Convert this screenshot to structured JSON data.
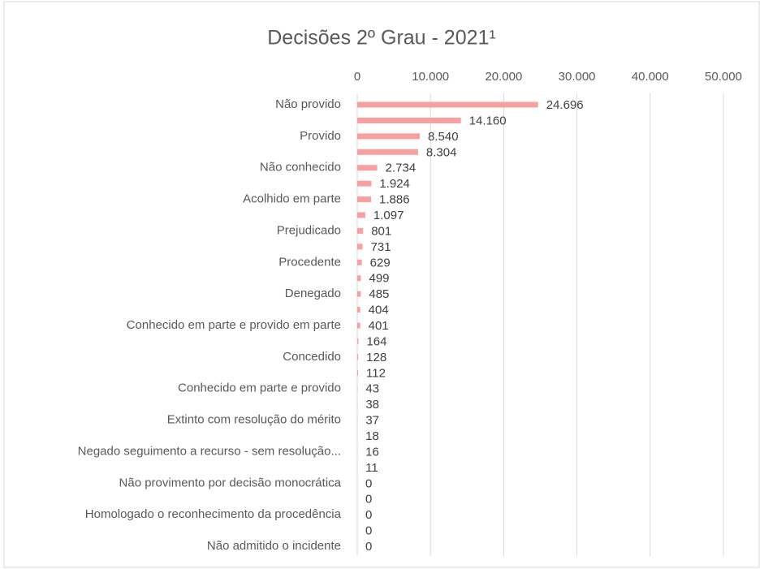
{
  "chart_data": {
    "type": "bar",
    "orientation": "horizontal",
    "title": "Decisões 2º Grau - 2021¹",
    "categories": [
      "Não provido",
      null,
      "Provido",
      null,
      "Não conhecido",
      null,
      "Acolhido em parte",
      null,
      "Prejudicado",
      null,
      "Procedente",
      null,
      "Denegado",
      null,
      "Conhecido em parte e provido em parte",
      null,
      "Concedido",
      null,
      "Conhecido em parte e provido",
      null,
      "Extinto com resolução do mérito",
      null,
      "Negado seguimento a recurso - sem resolução...",
      null,
      "Não provimento por decisão monocrática",
      null,
      "Homologado o reconhecimento da procedência",
      null,
      "Não admitido o incidente"
    ],
    "values": [
      24696,
      14160,
      8540,
      8304,
      2734,
      1924,
      1886,
      1097,
      801,
      731,
      629,
      499,
      485,
      404,
      401,
      164,
      128,
      112,
      43,
      38,
      37,
      18,
      16,
      11,
      0,
      0,
      0,
      0,
      0
    ],
    "value_labels": [
      "24.696",
      "14.160",
      "8.540",
      "8.304",
      "2.734",
      "1.924",
      "1.886",
      "1.097",
      "801",
      "731",
      "629",
      "499",
      "485",
      "404",
      "401",
      "164",
      "128",
      "112",
      "43",
      "38",
      "37",
      "18",
      "16",
      "11",
      "0",
      "0",
      "0",
      "0",
      "0"
    ],
    "color": "#f8a0a0",
    "xlim": [
      0,
      50000
    ],
    "xticks": [
      0,
      {
        "value": 10000,
        "label": "10.000"
      },
      {
        "value": 20000,
        "label": "20.000"
      },
      {
        "value": 30000,
        "label": "30.000"
      },
      {
        "value": 40000,
        "label": "40.000"
      },
      {
        "value": 50000,
        "label": "50.000"
      }
    ],
    "grid": true
  }
}
